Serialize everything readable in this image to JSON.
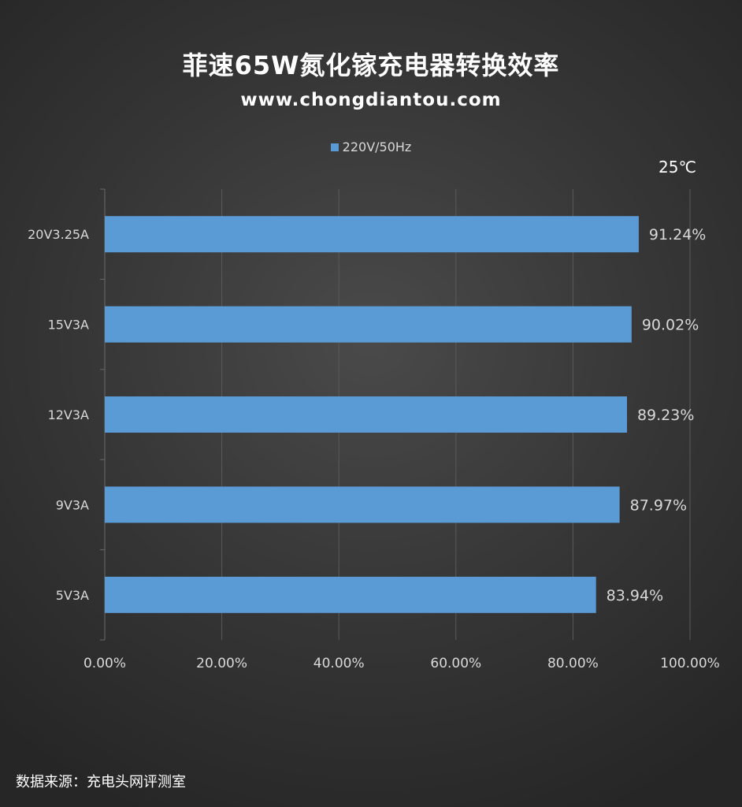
{
  "header": {
    "title": "菲速65W氮化镓充电器转换效率",
    "subtitle": "www.chongdiantou.com",
    "temperature": "25℃"
  },
  "footer": {
    "source": "数据来源：充电头网评测室"
  },
  "colors": {
    "bar": "#5b9bd5",
    "grid": "#5a5a5a",
    "text": "#d9d9d9"
  },
  "chart_data": {
    "type": "bar",
    "orientation": "horizontal",
    "title": "菲速65W氮化镓充电器转换效率",
    "subtitle": "www.chongdiantou.com",
    "categories": [
      "20V3.25A",
      "15V3A",
      "12V3A",
      "9V3A",
      "5V3A"
    ],
    "series": [
      {
        "name": "220V/50Hz",
        "values": [
          91.24,
          90.02,
          89.23,
          87.97,
          83.94
        ],
        "labels": [
          "91.24%",
          "90.02%",
          "89.23%",
          "87.97%",
          "83.94%"
        ]
      }
    ],
    "xlim": [
      0,
      100
    ],
    "x_ticks": [
      "0.00%",
      "20.00%",
      "40.00%",
      "60.00%",
      "80.00%",
      "100.00%"
    ],
    "grid": true,
    "legend": "top"
  }
}
